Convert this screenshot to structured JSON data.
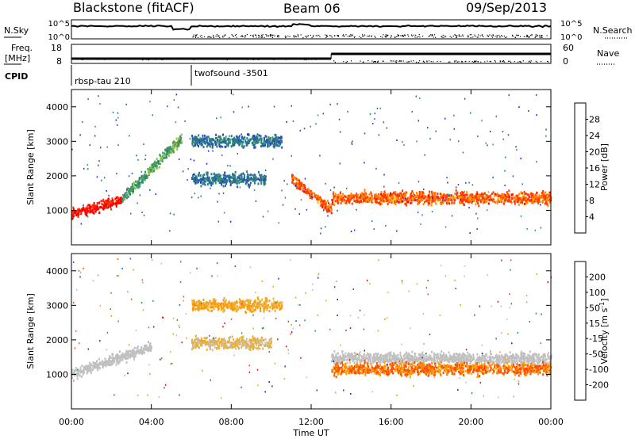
{
  "header": {
    "station": "Blackstone (fitACF)",
    "beam": "Beam 06",
    "date": "09/Sep/2013"
  },
  "noise_panel": {
    "left_label": "N.Sky",
    "right_label": "N.Search",
    "left_ticks": [
      "10^5",
      "10^0"
    ],
    "right_ticks": [
      "10^5",
      "10^0"
    ]
  },
  "freq_panel": {
    "left_label_1": "Freq.",
    "left_label_2": "[MHz]",
    "right_label": "Nave",
    "left_ticks": [
      "18",
      "8"
    ],
    "right_ticks": [
      "60",
      "0"
    ],
    "freq_segments": [
      {
        "from": 0.0,
        "to": 13.0,
        "value": 10.5
      },
      {
        "from": 13.0,
        "to": 24.0,
        "value": 13.0
      }
    ]
  },
  "cpid_panel": {
    "label": "CPID",
    "modes": [
      {
        "start": 0.0,
        "name": "rbsp-tau 210"
      },
      {
        "start": 6.0,
        "name": "twofsound -3501"
      }
    ]
  },
  "colors": {
    "power_scale": [
      "#2020ff",
      "#2a4fb8",
      "#2a7a8a",
      "#3f9a5f",
      "#8ec63f",
      "#ffc000",
      "#ff8a00",
      "#ff3a00",
      "#ff0000"
    ],
    "velocity_scale": [
      "#ff0000",
      "#ff5000",
      "#ff9a00",
      "#e8b040",
      "#c0c0c0",
      "#c0c0c0",
      "#80d040",
      "#20a030",
      "#2a60c0",
      "#1a2ac8"
    ],
    "ground_scatter": "#c0c0c0"
  },
  "chart_data": [
    {
      "type": "heatmap",
      "name": "power",
      "xlabel": "",
      "ylabel": "Slant Range [km]",
      "xlim": [
        0,
        24
      ],
      "ylim": [
        0,
        4500
      ],
      "y_ticks": [
        "1000",
        "2000",
        "3000",
        "4000"
      ],
      "colorbar": {
        "label": "Power [dB]",
        "ticks": [
          "4",
          "8",
          "12",
          "16",
          "20",
          "24",
          "28"
        ],
        "range": [
          0,
          30
        ]
      },
      "features": [
        {
          "from": 0.0,
          "to": 2.5,
          "range_start": 900,
          "range_end": 1300,
          "value": 28
        },
        {
          "from": 2.5,
          "to": 5.5,
          "range_start": 1300,
          "range_end": 3100,
          "value": 12
        },
        {
          "from": 6.0,
          "to": 10.5,
          "range": 3000,
          "value": 8
        },
        {
          "from": 6.0,
          "to": 9.7,
          "range": 1900,
          "value": 8
        },
        {
          "from": 11.0,
          "to": 13.0,
          "range_start": 1900,
          "range_end": 1000,
          "value": 24
        },
        {
          "from": 13.0,
          "to": 24.0,
          "range": 1350,
          "value": 24
        }
      ]
    },
    {
      "type": "heatmap",
      "name": "velocity",
      "xlabel": "Time UT",
      "ylabel": "Slant Range [km]",
      "xlim": [
        0,
        24
      ],
      "ylim": [
        0,
        4500
      ],
      "x_ticks": [
        "00:00",
        "04:00",
        "08:00",
        "12:00",
        "16:00",
        "20:00",
        "00:00"
      ],
      "y_ticks": [
        "1000",
        "2000",
        "3000",
        "4000"
      ],
      "colorbar": {
        "label": "Velocity [m s^-1]",
        "ticks": [
          "200",
          "100",
          "50",
          "15",
          "-15",
          "-50",
          "-100",
          "-200"
        ],
        "range": [
          -250,
          250
        ]
      },
      "features": [
        {
          "from": 0.0,
          "to": 4.0,
          "range_start": 1000,
          "range_end": 1800,
          "value": 0,
          "ground_scatter": true
        },
        {
          "from": 6.0,
          "to": 10.0,
          "range": 1900,
          "value": -60
        },
        {
          "from": 6.0,
          "to": 10.5,
          "range": 3000,
          "value": -100
        },
        {
          "from": 13.0,
          "to": 24.0,
          "range": 1450,
          "value": 0,
          "ground_scatter": true
        },
        {
          "from": 13.0,
          "to": 24.0,
          "range": 1150,
          "value": -150
        }
      ]
    }
  ]
}
